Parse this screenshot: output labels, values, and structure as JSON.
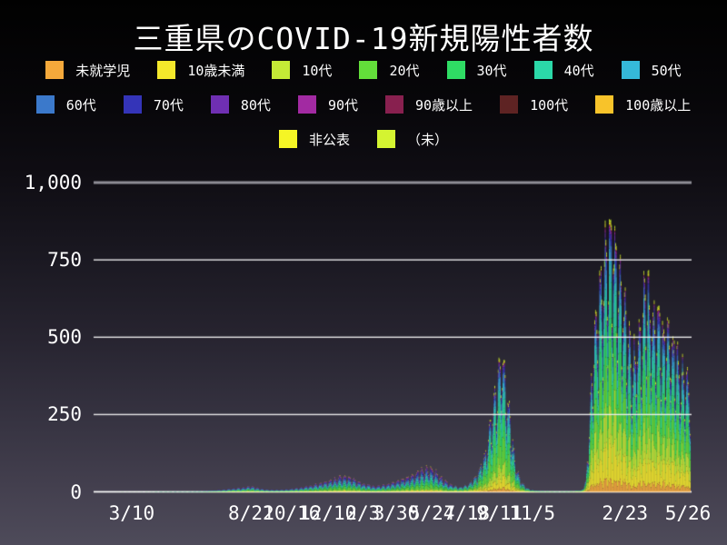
{
  "chart_data": {
    "type": "bar",
    "variant": "stacked-daily-bars",
    "title": "三重県のCOVID-19新規陽性者数",
    "ylabel": "",
    "xlabel": "",
    "ylim": [
      0,
      1000
    ],
    "grid": "horizontal",
    "legend_position": "top",
    "background": "black-to-purple-gradient",
    "grid_color": "#f2f2f2",
    "top_grid_color": "#8f8f97",
    "axis_color": "#ffffff",
    "text_color": "#ffffff",
    "y_ticks": [
      {
        "value": 0,
        "label": "0"
      },
      {
        "value": 250,
        "label": "250"
      },
      {
        "value": 500,
        "label": "500"
      },
      {
        "value": 750,
        "label": "750"
      },
      {
        "value": 1000,
        "label": "1,000"
      }
    ],
    "x_ticks": [
      {
        "label": "3/10",
        "pos": 0.061
      },
      {
        "label": "8/22",
        "pos": 0.262
      },
      {
        "label": "10/16",
        "pos": 0.33
      },
      {
        "label": "12/10",
        "pos": 0.391
      },
      {
        "label": "2/3",
        "pos": 0.45
      },
      {
        "label": "3/30",
        "pos": 0.506
      },
      {
        "label": "5/24",
        "pos": 0.566
      },
      {
        "label": "7/18",
        "pos": 0.625
      },
      {
        "label": "9/11",
        "pos": 0.68
      },
      {
        "label": "11/5",
        "pos": 0.735
      },
      {
        "label": "2/23",
        "pos": 0.891
      },
      {
        "label": "5/26",
        "pos": 0.997
      }
    ],
    "legend_rows": [
      [
        {
          "name": "未就学児",
          "color": "#f5a93b"
        },
        {
          "name": "10歳未満",
          "color": "#f4e82b"
        },
        {
          "name": "10代",
          "color": "#c4ea36"
        },
        {
          "name": "20代",
          "color": "#63de3a"
        },
        {
          "name": "30代",
          "color": "#2fdc64"
        },
        {
          "name": "40代",
          "color": "#2bd8a8"
        },
        {
          "name": "50代",
          "color": "#35b9d9"
        }
      ],
      [
        {
          "name": "60代",
          "color": "#3b79cb"
        },
        {
          "name": "70代",
          "color": "#3434b8"
        },
        {
          "name": "80代",
          "color": "#6f2fb2"
        },
        {
          "name": "90代",
          "color": "#a22aa2"
        },
        {
          "name": "90歳以上",
          "color": "#88204f"
        },
        {
          "name": "100代",
          "color": "#5e2323"
        },
        {
          "name": "100歳以上",
          "color": "#f8c32a"
        }
      ],
      [
        {
          "name": "非公表",
          "color": "#f5f525"
        },
        {
          "name": "（未）",
          "color": "#d4f431"
        }
      ]
    ],
    "series_stack_order": [
      "未就学児",
      "10歳未満",
      "10代",
      "20代",
      "30代",
      "40代",
      "50代",
      "60代",
      "70代",
      "80代",
      "90代",
      "90歳以上",
      "100代",
      "100歳以上",
      "非公表",
      "（未）"
    ],
    "days_spanned": 862,
    "daily_total_envelope": [
      [
        0.0,
        0
      ],
      [
        0.04,
        1
      ],
      [
        0.08,
        1
      ],
      [
        0.12,
        2
      ],
      [
        0.15,
        2
      ],
      [
        0.18,
        3
      ],
      [
        0.21,
        7
      ],
      [
        0.24,
        14
      ],
      [
        0.262,
        20
      ],
      [
        0.28,
        10
      ],
      [
        0.3,
        7
      ],
      [
        0.32,
        9
      ],
      [
        0.34,
        14
      ],
      [
        0.36,
        22
      ],
      [
        0.38,
        32
      ],
      [
        0.4,
        45
      ],
      [
        0.415,
        58
      ],
      [
        0.43,
        48
      ],
      [
        0.45,
        30
      ],
      [
        0.47,
        20
      ],
      [
        0.49,
        26
      ],
      [
        0.51,
        40
      ],
      [
        0.53,
        60
      ],
      [
        0.55,
        80
      ],
      [
        0.566,
        88
      ],
      [
        0.58,
        55
      ],
      [
        0.595,
        28
      ],
      [
        0.61,
        16
      ],
      [
        0.625,
        24
      ],
      [
        0.64,
        55
      ],
      [
        0.655,
        130
      ],
      [
        0.668,
        300
      ],
      [
        0.678,
        430
      ],
      [
        0.684,
        510
      ],
      [
        0.69,
        420
      ],
      [
        0.697,
        260
      ],
      [
        0.703,
        150
      ],
      [
        0.71,
        70
      ],
      [
        0.718,
        30
      ],
      [
        0.727,
        12
      ],
      [
        0.735,
        6
      ],
      [
        0.75,
        3
      ],
      [
        0.78,
        2
      ],
      [
        0.805,
        3
      ],
      [
        0.818,
        6
      ],
      [
        0.825,
        40
      ],
      [
        0.83,
        220
      ],
      [
        0.836,
        480
      ],
      [
        0.842,
        640
      ],
      [
        0.848,
        760
      ],
      [
        0.855,
        820
      ],
      [
        0.862,
        900
      ],
      [
        0.868,
        1005
      ],
      [
        0.873,
        880
      ],
      [
        0.879,
        800
      ],
      [
        0.885,
        740
      ],
      [
        0.891,
        660
      ],
      [
        0.897,
        560
      ],
      [
        0.903,
        500
      ],
      [
        0.909,
        530
      ],
      [
        0.916,
        610
      ],
      [
        0.922,
        700
      ],
      [
        0.928,
        765
      ],
      [
        0.934,
        690
      ],
      [
        0.94,
        610
      ],
      [
        0.946,
        660
      ],
      [
        0.952,
        600
      ],
      [
        0.958,
        545
      ],
      [
        0.964,
        620
      ],
      [
        0.97,
        545
      ],
      [
        0.976,
        505
      ],
      [
        0.982,
        465
      ],
      [
        0.99,
        430
      ],
      [
        1.0,
        380
      ]
    ],
    "weekly_pattern": [
      0.55,
      0.78,
      0.96,
      1.05,
      1.02,
      0.95,
      0.65
    ],
    "age_share_eras": [
      {
        "until": 0.6,
        "shares": [
          0.02,
          0.045,
          0.06,
          0.2,
          0.145,
          0.13,
          0.11,
          0.09,
          0.08,
          0.065,
          0.03,
          0.01,
          0.002,
          0.002,
          0.013,
          0.008
        ]
      },
      {
        "until": 0.8,
        "shares": [
          0.03,
          0.075,
          0.11,
          0.22,
          0.17,
          0.15,
          0.1,
          0.055,
          0.035,
          0.02,
          0.008,
          0.003,
          0.001,
          0.001,
          0.012,
          0.01
        ]
      },
      {
        "until": 1.01,
        "shares": [
          0.05,
          0.13,
          0.15,
          0.17,
          0.15,
          0.13,
          0.08,
          0.05,
          0.032,
          0.02,
          0.009,
          0.004,
          0.001,
          0.002,
          0.012,
          0.01
        ]
      }
    ]
  }
}
